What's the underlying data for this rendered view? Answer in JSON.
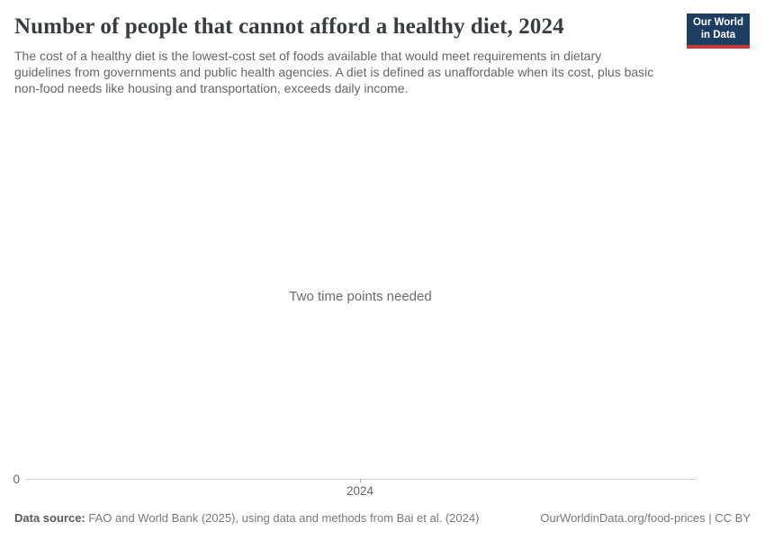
{
  "header": {
    "title": "Number of people that cannot afford a healthy diet, 2024",
    "subtitle": "The cost of a healthy diet is the lowest-cost set of foods available that would meet requirements in dietary guidelines from governments and public health agencies. A diet is defined as unaffordable when its cost, plus basic non-food needs like housing and transportation, exceeds daily income.",
    "logo": {
      "line1": "Our World",
      "line2": "in Data",
      "bg_color": "#1d3d63",
      "stripe_color": "#c23c33"
    }
  },
  "chart": {
    "empty_state_message": "Two time points needed",
    "y_axis": {
      "tick_label": "0"
    },
    "x_axis": {
      "tick_label": "2024"
    },
    "axis_line_color": "#cfcfcf"
  },
  "footer": {
    "source_label": "Data source:",
    "source_text": " FAO and World Bank (2025), using data and methods from Bai et al. (2024)",
    "citation": "OurWorldinData.org/food-prices | CC BY"
  },
  "chart_data": {
    "type": "line",
    "title": "Number of people that cannot afford a healthy diet, 2024",
    "series": [],
    "x": [],
    "x_tick_labels": [
      "2024"
    ],
    "y_tick_labels": [
      "0"
    ],
    "grid": false,
    "legend": false,
    "empty_state": "Two time points needed — no data points plotted"
  }
}
